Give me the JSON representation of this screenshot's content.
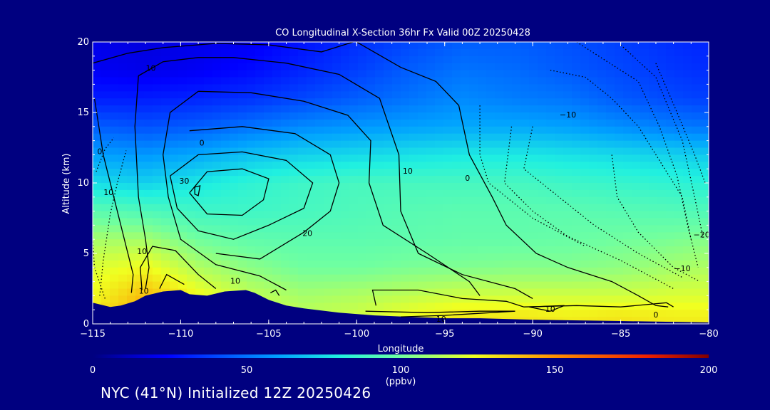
{
  "chart_data": {
    "type": "heatmap",
    "title": "CO Longitudinal X-Section 36hr  Fx Valid 00Z 20250428",
    "xlabel": "Longitude",
    "ylabel": "Altitude (km)",
    "xlim": [
      -115,
      -80
    ],
    "ylim": [
      0,
      20
    ],
    "x_ticks": [
      -115,
      -110,
      -105,
      -100,
      -95,
      -90,
      -85,
      -80
    ],
    "x_tick_labels": [
      "−115",
      "−110",
      "−105",
      "−100",
      "−95",
      "−90",
      "−85",
      "−80"
    ],
    "y_ticks": [
      0,
      5,
      10,
      15,
      20
    ],
    "y_tick_labels": [
      "0",
      "5",
      "10",
      "15",
      "20"
    ],
    "colorbar": {
      "min": 0,
      "max": 200,
      "ticks": [
        0,
        50,
        100,
        150,
        200
      ],
      "tick_labels": [
        "0",
        "50",
        "100",
        "150",
        "200"
      ],
      "unit": "(ppbv)"
    },
    "colors": {
      "background": "#000080",
      "terrain": "#000080",
      "contour": "#000000"
    },
    "co_field_ppbv": {
      "description_rows_altitude_km": [
        0.5,
        2,
        4,
        6,
        8,
        10,
        12,
        14,
        16,
        18,
        20
      ],
      "description_cols_longitude": [
        -115,
        -112,
        -109,
        -106,
        -103,
        -100,
        -97,
        -94,
        -91,
        -88,
        -85,
        -82,
        -80
      ],
      "values": [
        [
          130,
          145,
          135,
          120,
          115,
          118,
          125,
          130,
          130,
          128,
          130,
          128,
          128
        ],
        [
          125,
          140,
          125,
          115,
          110,
          112,
          115,
          118,
          118,
          118,
          118,
          120,
          120
        ],
        [
          120,
          125,
          112,
          105,
          100,
          100,
          102,
          103,
          104,
          104,
          106,
          110,
          112
        ],
        [
          110,
          110,
          100,
          96,
          95,
          95,
          96,
          97,
          97,
          98,
          100,
          102,
          104
        ],
        [
          95,
          92,
          88,
          88,
          90,
          92,
          94,
          95,
          95,
          95,
          94,
          93,
          92
        ],
        [
          75,
          72,
          78,
          84,
          88,
          90,
          90,
          90,
          90,
          88,
          86,
          84,
          82
        ],
        [
          60,
          58,
          62,
          68,
          72,
          74,
          76,
          78,
          78,
          76,
          74,
          72,
          70
        ],
        [
          45,
          42,
          45,
          50,
          55,
          58,
          60,
          62,
          62,
          60,
          56,
          52,
          50
        ],
        [
          30,
          30,
          32,
          35,
          40,
          45,
          50,
          55,
          52,
          50,
          44,
          40,
          38
        ],
        [
          22,
          20,
          22,
          26,
          32,
          38,
          45,
          50,
          48,
          44,
          40,
          36,
          34
        ],
        [
          20,
          18,
          20,
          22,
          28,
          34,
          40,
          45,
          45,
          42,
          38,
          34,
          32
        ]
      ]
    },
    "terrain_km": {
      "lon": [
        -115,
        -114,
        -113.4,
        -112.6,
        -112,
        -111,
        -110,
        -109.5,
        -108.5,
        -107.5,
        -106.3,
        -105.8,
        -105,
        -104,
        -103,
        -101,
        -99,
        -97,
        -95,
        -93,
        -90,
        -85,
        -80
      ],
      "alt": [
        1.5,
        1.2,
        1.3,
        1.6,
        2.0,
        2.3,
        2.4,
        2.1,
        2.0,
        2.3,
        2.4,
        2.2,
        1.7,
        1.3,
        1.1,
        0.8,
        0.6,
        0.5,
        0.4,
        0.4,
        0.3,
        0.2,
        0.1
      ]
    },
    "contours": [
      {
        "label": "10",
        "style": "solid",
        "pts": [
          [
            -115,
            18.5
          ],
          [
            -113,
            19.2
          ],
          [
            -111,
            19.6
          ],
          [
            -108,
            19.9
          ],
          [
            -105,
            19.8
          ],
          [
            -102,
            19.3
          ],
          [
            -100.2,
            20
          ]
        ]
      },
      {
        "label": "0",
        "style": "solid",
        "pts": [
          [
            -114.9,
            16
          ],
          [
            -114.4,
            12
          ],
          [
            -113.8,
            9
          ],
          [
            -113.2,
            6
          ],
          [
            -112.7,
            3.5
          ],
          [
            -112.8,
            2.2
          ]
        ]
      },
      {
        "label": "-10",
        "style": "solid",
        "pts": [
          [
            -112.4,
            17.6
          ],
          [
            -111,
            18.6
          ],
          [
            -109,
            18.9
          ],
          [
            -107,
            18.9
          ],
          [
            -104,
            18.5
          ],
          [
            -101,
            17.7
          ],
          [
            -98.7,
            16
          ],
          [
            -97.6,
            12
          ],
          [
            -97.5,
            8
          ],
          [
            -96.5,
            5
          ],
          [
            -94,
            3.5
          ],
          [
            -91,
            2.5
          ],
          [
            -90,
            1.8
          ]
        ]
      },
      {
        "label": "",
        "style": "solid",
        "pts": [
          [
            -112.4,
            17.6
          ],
          [
            -112.6,
            14
          ],
          [
            -112.4,
            9
          ],
          [
            -112,
            6
          ],
          [
            -111.8,
            4
          ],
          [
            -112,
            2.5
          ]
        ]
      },
      {
        "label": "0",
        "style": "solid",
        "pts": [
          [
            -100,
            20
          ],
          [
            -97.5,
            18.2
          ],
          [
            -95.5,
            17.2
          ],
          [
            -94.2,
            15.5
          ],
          [
            -93.6,
            12
          ],
          [
            -92.3,
            9
          ],
          [
            -91.5,
            7
          ],
          [
            -89.8,
            5
          ],
          [
            -88,
            4
          ],
          [
            -85.5,
            3
          ],
          [
            -84,
            2
          ],
          [
            -83,
            1.3
          ],
          [
            -82.3,
            1.2
          ]
        ]
      },
      {
        "label": "",
        "style": "solid",
        "pts": [
          [
            -109,
            16.5
          ],
          [
            -106,
            16.4
          ],
          [
            -103,
            15.8
          ],
          [
            -100.5,
            14.8
          ],
          [
            -99.2,
            13
          ],
          [
            -99.3,
            10
          ],
          [
            -98.5,
            7
          ],
          [
            -96,
            5
          ],
          [
            -93.6,
            3
          ],
          [
            -93,
            2
          ]
        ]
      },
      {
        "label": "10",
        "style": "solid",
        "pts": [
          [
            -109,
            16.5
          ],
          [
            -110.6,
            15
          ],
          [
            -111,
            12
          ],
          [
            -110.7,
            9
          ],
          [
            -110,
            6
          ],
          [
            -108,
            4.2
          ],
          [
            -105.5,
            3.4
          ],
          [
            -104,
            2.4
          ]
        ]
      },
      {
        "label": "",
        "style": "solid",
        "pts": [
          [
            -109.5,
            13.7
          ],
          [
            -106.5,
            14
          ],
          [
            -103.5,
            13.5
          ],
          [
            -101.5,
            12
          ],
          [
            -101,
            10
          ],
          [
            -101.5,
            8
          ],
          [
            -103,
            6.5
          ],
          [
            -105.5,
            4.6
          ],
          [
            -108,
            5
          ]
        ]
      },
      {
        "label": "20",
        "style": "solid",
        "pts": [
          [
            -110.6,
            10.5
          ],
          [
            -109,
            12
          ],
          [
            -106.5,
            12.2
          ],
          [
            -104,
            11.6
          ],
          [
            -102.5,
            10
          ],
          [
            -103,
            8.2
          ],
          [
            -105,
            7
          ],
          [
            -107,
            6
          ],
          [
            -109,
            6.6
          ],
          [
            -110.2,
            8.2
          ],
          [
            -110.6,
            10.5
          ]
        ]
      },
      {
        "label": "30",
        "style": "solid",
        "pts": [
          [
            -109.5,
            9.3
          ],
          [
            -108.5,
            10.8
          ],
          [
            -106.5,
            11
          ],
          [
            -105,
            10.3
          ],
          [
            -105.3,
            8.8
          ],
          [
            -106.5,
            7.7
          ],
          [
            -108.5,
            7.8
          ],
          [
            -109.5,
            9.3
          ]
        ]
      },
      {
        "label": "",
        "style": "solid",
        "pts": [
          [
            -109.2,
            9.7
          ],
          [
            -108.9,
            9.8
          ],
          [
            -109,
            9.1
          ],
          [
            -109.2,
            9.2
          ],
          [
            -109.2,
            9.7
          ]
        ]
      },
      {
        "label": "10",
        "style": "solid",
        "pts": [
          [
            -112.2,
            2.4
          ],
          [
            -112.3,
            4
          ],
          [
            -111.6,
            5.5
          ],
          [
            -110.3,
            5.2
          ],
          [
            -109,
            3.5
          ],
          [
            -108,
            2.5
          ]
        ]
      },
      {
        "label": "",
        "style": "solid",
        "pts": [
          [
            -98.9,
            1.3
          ],
          [
            -99.1,
            2.4
          ],
          [
            -96.5,
            2.4
          ],
          [
            -94,
            1.8
          ],
          [
            -91.5,
            1.6
          ],
          [
            -90.5,
            1.2
          ],
          [
            -87.5,
            1.3
          ],
          [
            -85,
            1.2
          ],
          [
            -82.4,
            1.5
          ],
          [
            -82,
            1.2
          ]
        ]
      },
      {
        "label": "10",
        "style": "solid",
        "pts": [
          [
            -99.5,
            0.9
          ],
          [
            -96,
            0.8
          ],
          [
            -93,
            0.9
          ],
          [
            -91,
            0.9
          ],
          [
            -95,
            0.6
          ],
          [
            -97.5,
            0.5
          ]
        ]
      },
      {
        "label": "10",
        "style": "solid",
        "pts": [
          [
            -90.2,
            1.2
          ],
          [
            -88.2,
            1.3
          ],
          [
            -89,
            0.9
          ],
          [
            -90.2,
            1.2
          ]
        ]
      },
      {
        "label": "",
        "style": "solid",
        "pts": [
          [
            -104.9,
            2.2
          ],
          [
            -104.6,
            2.4
          ],
          [
            -104.4,
            2.0
          ]
        ]
      },
      {
        "label": "",
        "style": "solid",
        "pts": [
          [
            -109.8,
            2.8
          ],
          [
            -110.8,
            3.5
          ],
          [
            -111.2,
            2.5
          ]
        ]
      },
      {
        "label": "-10",
        "style": "dotted",
        "pts": [
          [
            -89,
            18
          ],
          [
            -87,
            17.5
          ],
          [
            -85.5,
            16
          ],
          [
            -84,
            14
          ],
          [
            -82.5,
            11
          ],
          [
            -81.5,
            9
          ],
          [
            -81,
            6
          ]
        ]
      },
      {
        "label": "-20",
        "style": "dotted",
        "pts": [
          [
            -85,
            19.8
          ],
          [
            -83,
            17.5
          ],
          [
            -81.5,
            13
          ],
          [
            -80.8,
            9
          ],
          [
            -80.3,
            6
          ]
        ]
      },
      {
        "label": "-10",
        "style": "dotted",
        "pts": [
          [
            -85.5,
            12
          ],
          [
            -85.2,
            9
          ],
          [
            -84,
            6.5
          ],
          [
            -82,
            4
          ],
          [
            -80.5,
            3
          ]
        ]
      },
      {
        "label": "",
        "style": "dotted",
        "pts": [
          [
            -90,
            14
          ],
          [
            -90.5,
            11
          ],
          [
            -88.5,
            9
          ],
          [
            -86.5,
            7
          ],
          [
            -84,
            5
          ],
          [
            -81.5,
            3.3
          ]
        ]
      },
      {
        "label": "",
        "style": "dotted",
        "pts": [
          [
            -91.2,
            14
          ],
          [
            -91.6,
            10
          ],
          [
            -90,
            8
          ],
          [
            -88,
            6.2
          ],
          [
            -85,
            4.5
          ],
          [
            -82,
            2.5
          ]
        ]
      },
      {
        "label": "",
        "style": "dotted",
        "pts": [
          [
            -87.5,
            20
          ],
          [
            -86,
            18.8
          ],
          [
            -84,
            17.2
          ],
          [
            -82.8,
            14
          ],
          [
            -81.8,
            10.5
          ],
          [
            -81.2,
            7
          ],
          [
            -80.6,
            4
          ]
        ]
      },
      {
        "label": "",
        "style": "dotted",
        "pts": [
          [
            -83,
            18.5
          ],
          [
            -81.8,
            15
          ],
          [
            -80.8,
            12
          ],
          [
            -80.2,
            10
          ]
        ]
      },
      {
        "label": "",
        "style": "dotted",
        "pts": [
          [
            -93,
            15.5
          ],
          [
            -93,
            12
          ],
          [
            -92.5,
            10
          ],
          [
            -90,
            7.5
          ],
          [
            -87,
            5.5
          ]
        ]
      },
      {
        "label": "10",
        "style": "dotted",
        "pts": [
          [
            -114.6,
            2
          ],
          [
            -114.4,
            4.5
          ],
          [
            -114,
            7.8
          ],
          [
            -113.6,
            10
          ],
          [
            -113.1,
            12.3
          ]
        ]
      },
      {
        "label": "",
        "style": "dotted",
        "pts": [
          [
            -114.3,
            1.8
          ],
          [
            -114.9,
            4
          ],
          [
            -115,
            6
          ]
        ]
      },
      {
        "label": "",
        "style": "dotted",
        "pts": [
          [
            -114.8,
            10.8
          ],
          [
            -114.3,
            12.4
          ],
          [
            -113.8,
            13.2
          ]
        ]
      }
    ],
    "contour_label_positions": [
      {
        "text": "10",
        "lon": -111.7,
        "alt": 18.1
      },
      {
        "text": "0",
        "lon": -114.6,
        "alt": 12.2
      },
      {
        "text": "10",
        "lon": -114.1,
        "alt": 9.3
      },
      {
        "text": "0",
        "lon": -108.8,
        "alt": 12.8
      },
      {
        "text": "30",
        "lon": -109.8,
        "alt": 10.1
      },
      {
        "text": "20",
        "lon": -102.8,
        "alt": 6.4
      },
      {
        "text": "10",
        "lon": -97.1,
        "alt": 10.8
      },
      {
        "text": "0",
        "lon": -93.7,
        "alt": 10.3
      },
      {
        "text": "10",
        "lon": -112.2,
        "alt": 5.1
      },
      {
        "text": "10",
        "lon": -112.1,
        "alt": 2.3
      },
      {
        "text": "10",
        "lon": -106.9,
        "alt": 3.0
      },
      {
        "text": "10",
        "lon": -95.2,
        "alt": 0.3
      },
      {
        "text": "10",
        "lon": -89.0,
        "alt": 1.0
      },
      {
        "text": "0",
        "lon": -83.0,
        "alt": 0.6
      },
      {
        "text": "−10",
        "lon": -88.0,
        "alt": 14.8
      },
      {
        "text": "−20",
        "lon": -80.4,
        "alt": 6.3
      },
      {
        "text": "−10",
        "lon": -81.5,
        "alt": 3.9
      }
    ]
  },
  "footer": {
    "text": "NYC (41°N) Initialized 12Z 20250426"
  }
}
